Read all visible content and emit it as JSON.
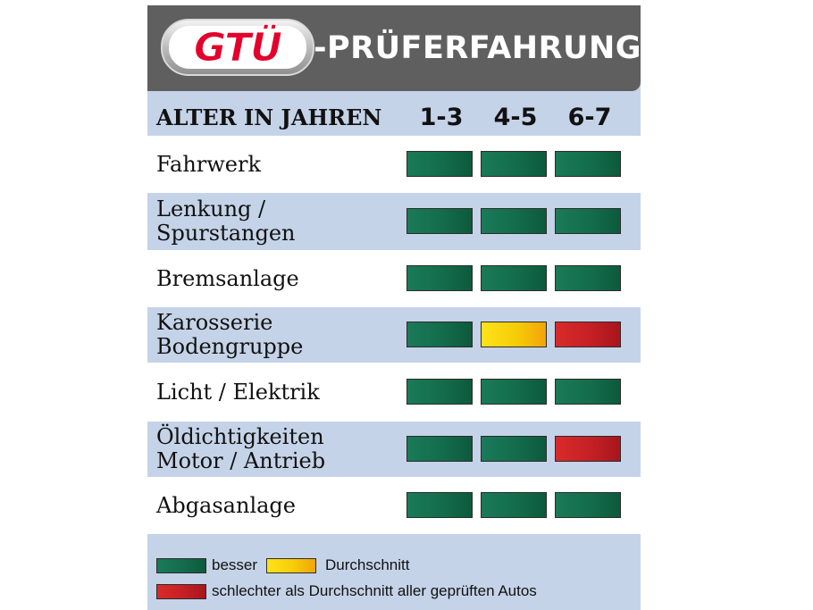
{
  "header": {
    "logo_text": "GTÜ",
    "title": "-PRÜFERFAHRUNG"
  },
  "colors": {
    "green": "#136c4c",
    "yellow": "#f5cc08",
    "red": "#c42025"
  },
  "chart_data": {
    "type": "table",
    "title": "-PRÜFERFAHRUNG",
    "row_header": "ALTER IN JAHREN",
    "columns": [
      "1-3",
      "4-5",
      "6-7"
    ],
    "rows": [
      {
        "label_lines": [
          "Fahrwerk"
        ],
        "ratings": [
          "green",
          "green",
          "green"
        ]
      },
      {
        "label_lines": [
          "Lenkung /",
          "Spurstangen"
        ],
        "ratings": [
          "green",
          "green",
          "green"
        ]
      },
      {
        "label_lines": [
          "Bremsanlage"
        ],
        "ratings": [
          "green",
          "green",
          "green"
        ]
      },
      {
        "label_lines": [
          "Karosserie",
          "Bodengruppe"
        ],
        "ratings": [
          "green",
          "yellow",
          "red"
        ]
      },
      {
        "label_lines": [
          "Licht / Elektrik"
        ],
        "ratings": [
          "green",
          "green",
          "green"
        ]
      },
      {
        "label_lines": [
          "Öldichtigkeiten",
          "Motor / Antrieb"
        ],
        "ratings": [
          "green",
          "green",
          "red"
        ]
      },
      {
        "label_lines": [
          "Abgasanlage"
        ],
        "ratings": [
          "green",
          "green",
          "green"
        ]
      }
    ],
    "legend": [
      {
        "rating": "green",
        "label": "besser"
      },
      {
        "rating": "yellow",
        "label": "Durchschnitt"
      },
      {
        "rating": "red",
        "label": "schlechter als Durchschnitt aller geprüften Autos"
      }
    ]
  }
}
